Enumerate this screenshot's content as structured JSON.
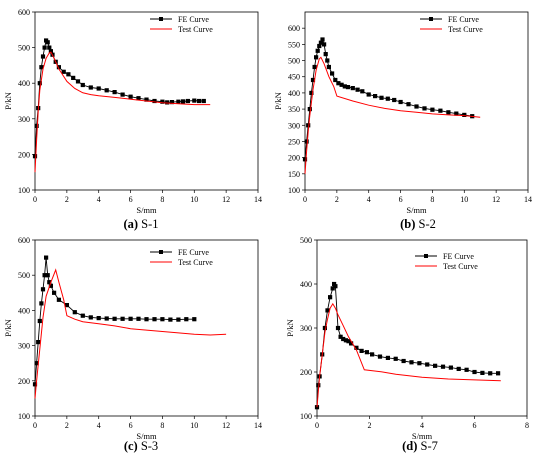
{
  "chart_data": [
    {
      "type": "line",
      "caption": {
        "letter": "(a)",
        "name": "S-1"
      },
      "xlabel": "S/mm",
      "ylabel": "P/kN",
      "xlim": [
        0,
        14
      ],
      "ylim": [
        100,
        600
      ],
      "xticks": [
        0,
        2,
        4,
        6,
        8,
        10,
        12,
        14
      ],
      "yticks": [
        100,
        200,
        300,
        400,
        500,
        600
      ],
      "legend_position": "top-right",
      "series": [
        {
          "name": "FE Curve",
          "style": "line-square-markers",
          "color": "#000000",
          "x": [
            0,
            0.1,
            0.2,
            0.3,
            0.4,
            0.5,
            0.6,
            0.7,
            0.8,
            0.9,
            1.0,
            1.1,
            1.3,
            1.5,
            1.8,
            2.1,
            2.4,
            2.7,
            3.0,
            3.5,
            4.0,
            4.5,
            5.0,
            5.5,
            6.0,
            6.5,
            7.0,
            7.5,
            8.0,
            8.3,
            8.6,
            9.0,
            9.3,
            9.6,
            10.0,
            10.3,
            10.6
          ],
          "y": [
            195,
            280,
            330,
            400,
            445,
            475,
            500,
            520,
            515,
            500,
            490,
            480,
            460,
            445,
            432,
            425,
            415,
            405,
            395,
            388,
            385,
            380,
            375,
            368,
            362,
            358,
            354,
            350,
            348,
            346,
            347,
            348,
            349,
            350,
            351,
            350,
            350
          ]
        },
        {
          "name": "Test Curve",
          "style": "line",
          "color": "#ff0000",
          "x": [
            0,
            0.1,
            0.2,
            0.3,
            0.5,
            0.7,
            0.9,
            1.0,
            1.2,
            1.5,
            2.0,
            2.5,
            3.0,
            3.5,
            4.0,
            5.0,
            6.0,
            7.0,
            8.0,
            9.0,
            10.0,
            11.0
          ],
          "y": [
            150,
            240,
            320,
            380,
            440,
            470,
            485,
            487,
            470,
            440,
            405,
            385,
            373,
            368,
            365,
            360,
            355,
            350,
            345,
            342,
            340,
            340
          ]
        }
      ]
    },
    {
      "type": "line",
      "caption": {
        "letter": "(b)",
        "name": "S-2"
      },
      "xlabel": "S/mm",
      "ylabel": "P/kN",
      "xlim": [
        0,
        14
      ],
      "ylim": [
        100,
        650
      ],
      "xticks": [
        0,
        2,
        4,
        6,
        8,
        10,
        12,
        14
      ],
      "yticks": [
        100,
        150,
        200,
        250,
        300,
        350,
        400,
        450,
        500,
        550,
        600
      ],
      "legend_position": "top-right",
      "series": [
        {
          "name": "FE Curve",
          "style": "line-square-markers",
          "color": "#000000",
          "x": [
            0,
            0.1,
            0.2,
            0.3,
            0.4,
            0.5,
            0.6,
            0.7,
            0.8,
            0.9,
            1.0,
            1.1,
            1.2,
            1.3,
            1.4,
            1.5,
            1.7,
            1.9,
            2.1,
            2.3,
            2.5,
            2.7,
            3.0,
            3.3,
            3.6,
            4.0,
            4.4,
            4.8,
            5.2,
            5.6,
            6.0,
            6.5,
            7.0,
            7.5,
            8.0,
            8.5,
            9.0,
            9.5,
            10.0,
            10.5
          ],
          "y": [
            195,
            250,
            300,
            350,
            400,
            440,
            480,
            510,
            530,
            545,
            555,
            565,
            550,
            520,
            500,
            480,
            460,
            440,
            430,
            425,
            420,
            418,
            415,
            410,
            405,
            395,
            390,
            385,
            382,
            378,
            372,
            365,
            358,
            352,
            348,
            345,
            340,
            336,
            332,
            328
          ]
        },
        {
          "name": "Test Curve",
          "style": "line",
          "color": "#ff0000",
          "x": [
            0,
            0.1,
            0.2,
            0.3,
            0.5,
            0.7,
            0.9,
            1.0,
            1.2,
            1.5,
            1.8,
            2.0,
            3.0,
            4.0,
            5.0,
            6.0,
            7.0,
            8.0,
            9.0,
            10.0,
            11.0
          ],
          "y": [
            150,
            220,
            280,
            330,
            410,
            470,
            505,
            510,
            490,
            450,
            420,
            390,
            375,
            362,
            352,
            345,
            340,
            335,
            332,
            330,
            325
          ]
        }
      ]
    },
    {
      "type": "line",
      "caption": {
        "letter": "(c)",
        "name": "S-3"
      },
      "xlabel": "S/mm",
      "ylabel": "P/kN",
      "xlim": [
        0,
        14
      ],
      "ylim": [
        100,
        600
      ],
      "xticks": [
        0,
        2,
        4,
        6,
        8,
        10,
        12,
        14
      ],
      "yticks": [
        100,
        200,
        300,
        400,
        500,
        600
      ],
      "legend_position": "top-right",
      "series": [
        {
          "name": "FE Curve",
          "style": "line-square-markers",
          "color": "#000000",
          "x": [
            0,
            0.1,
            0.2,
            0.3,
            0.4,
            0.5,
            0.6,
            0.7,
            0.8,
            0.9,
            1.0,
            1.2,
            1.5,
            2.0,
            2.5,
            3.0,
            3.5,
            4.0,
            4.5,
            5.0,
            5.5,
            6.0,
            6.5,
            7.0,
            7.5,
            8.0,
            8.5,
            9.0,
            9.5,
            10.0
          ],
          "y": [
            190,
            250,
            310,
            370,
            420,
            460,
            500,
            550,
            500,
            480,
            470,
            450,
            430,
            415,
            395,
            385,
            380,
            378,
            377,
            376,
            376,
            376,
            376,
            375,
            375,
            375,
            374,
            374,
            375,
            375
          ]
        },
        {
          "name": "Test Curve",
          "style": "line",
          "color": "#ff0000",
          "x": [
            0,
            0.1,
            0.3,
            0.5,
            0.7,
            1.0,
            1.3,
            1.5,
            1.8,
            2.0,
            2.5,
            3.0,
            4.0,
            5.0,
            6.0,
            7.0,
            8.0,
            9.0,
            10.0,
            11.0,
            12.0
          ],
          "y": [
            150,
            200,
            290,
            380,
            440,
            480,
            515,
            480,
            430,
            385,
            375,
            368,
            362,
            356,
            348,
            344,
            340,
            336,
            332,
            330,
            332
          ]
        }
      ]
    },
    {
      "type": "line",
      "caption": {
        "letter": "(d)",
        "name": "S-7"
      },
      "xlabel": "S/mm",
      "ylabel": "P/kN",
      "xlim": [
        0,
        8
      ],
      "ylim": [
        100,
        500
      ],
      "xticks": [
        0,
        2,
        4,
        6,
        8
      ],
      "yticks": [
        100,
        200,
        300,
        400,
        500
      ],
      "legend_position": "top-right",
      "series": [
        {
          "name": "FE Curve",
          "style": "line-square-markers",
          "color": "#000000",
          "x": [
            0,
            0.05,
            0.1,
            0.2,
            0.3,
            0.4,
            0.5,
            0.6,
            0.65,
            0.7,
            0.8,
            0.9,
            1.0,
            1.1,
            1.2,
            1.3,
            1.5,
            1.7,
            1.9,
            2.1,
            2.4,
            2.7,
            3.0,
            3.3,
            3.6,
            3.9,
            4.2,
            4.5,
            4.8,
            5.1,
            5.4,
            5.7,
            6.0,
            6.3,
            6.6,
            6.9
          ],
          "y": [
            120,
            170,
            190,
            240,
            300,
            340,
            370,
            390,
            400,
            395,
            300,
            280,
            275,
            272,
            270,
            265,
            255,
            248,
            245,
            240,
            235,
            232,
            230,
            225,
            222,
            220,
            217,
            214,
            212,
            210,
            207,
            205,
            200,
            198,
            197,
            197
          ]
        },
        {
          "name": "Test Curve",
          "style": "line",
          "color": "#ff0000",
          "x": [
            0,
            0.1,
            0.2,
            0.3,
            0.4,
            0.5,
            0.6,
            0.7,
            0.8,
            1.0,
            1.2,
            1.5,
            1.8,
            2.5,
            3.0,
            4.0,
            5.0,
            6.0,
            7.0
          ],
          "y": [
            120,
            190,
            240,
            290,
            320,
            345,
            355,
            345,
            330,
            305,
            280,
            250,
            205,
            200,
            195,
            188,
            184,
            182,
            180
          ]
        }
      ]
    }
  ]
}
